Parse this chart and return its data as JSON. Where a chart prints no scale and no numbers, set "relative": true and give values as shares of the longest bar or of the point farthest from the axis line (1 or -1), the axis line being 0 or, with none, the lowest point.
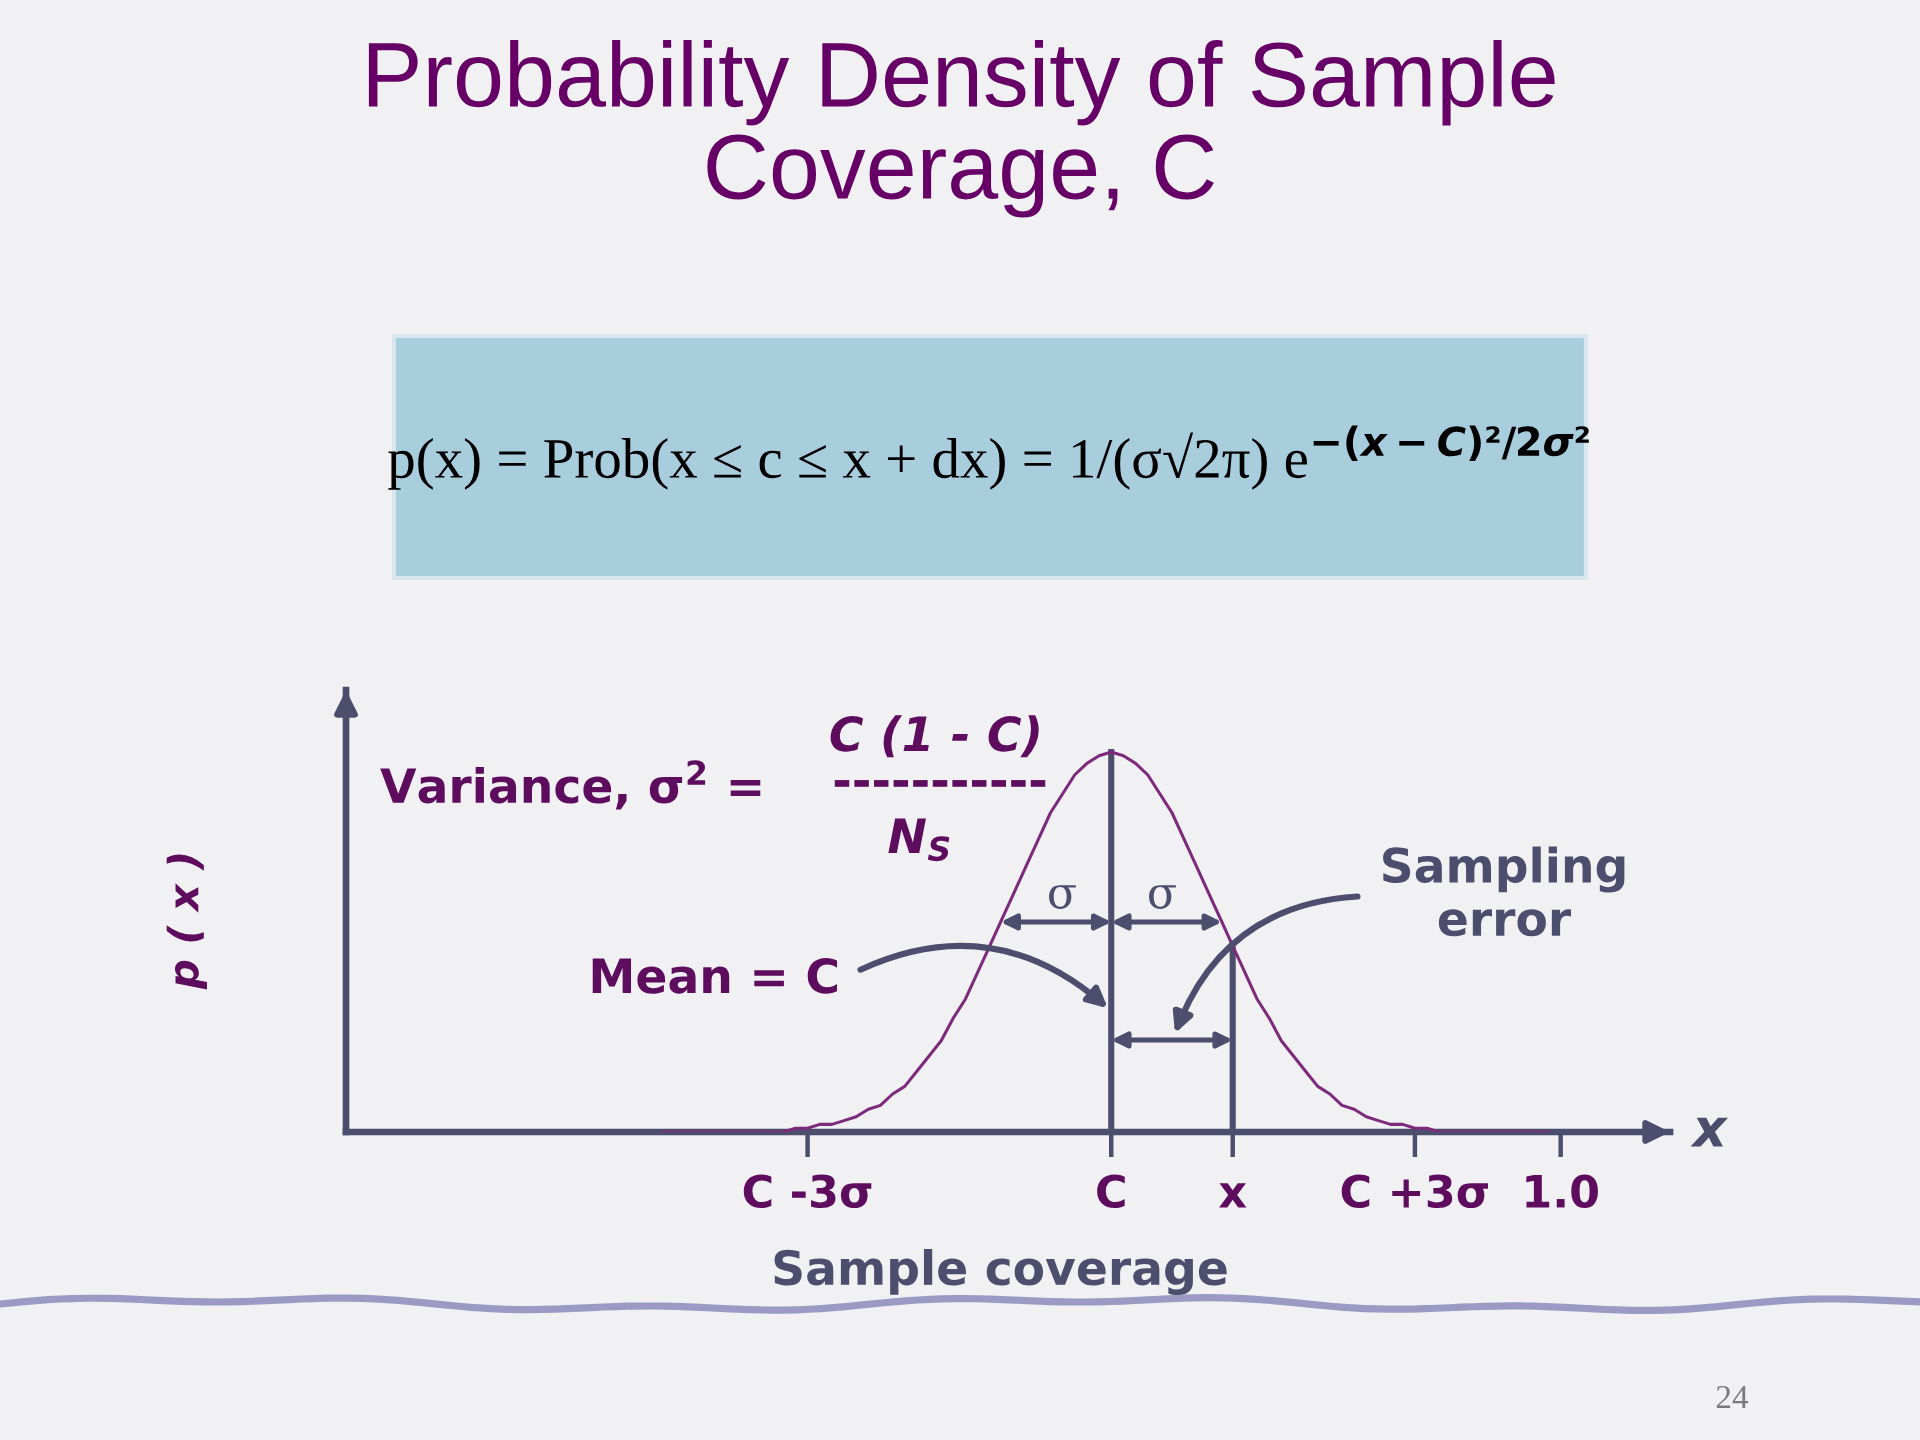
{
  "chart_data": {
    "type": "line",
    "title": "Probability Density of Sample\nCoverage, C",
    "xlabel": "x",
    "ylabel": "p ( x )",
    "relative": true,
    "categories": [
      null,
      null,
      null,
      null,
      null,
      null,
      null,
      null,
      null,
      null,
      null,
      null,
      null,
      null,
      null,
      null,
      null,
      null,
      null,
      null,
      null,
      null,
      null,
      null,
      null,
      null,
      null,
      null,
      null,
      null,
      null,
      null,
      null,
      null,
      null,
      null,
      null,
      null,
      "C -3σ",
      null,
      null,
      null,
      null,
      null,
      null,
      null,
      null,
      null,
      null,
      null,
      null,
      null,
      null,
      null,
      null,
      null,
      null,
      null,
      null,
      null,
      null,
      null,
      null,
      "C",
      null,
      null,
      null,
      null,
      null,
      null,
      null,
      null,
      null,
      "x",
      null,
      null,
      null,
      null,
      null,
      null,
      null,
      null,
      null,
      null,
      null,
      null,
      null,
      null,
      "C +3σ",
      null,
      null,
      null,
      null,
      null,
      null,
      null,
      null,
      null,
      null,
      null,
      "1.0",
      null,
      null,
      null,
      null,
      null,
      null,
      null,
      null,
      null
    ],
    "values": [
      null,
      null,
      null,
      null,
      null,
      null,
      null,
      null,
      null,
      null,
      null,
      null,
      null,
      null,
      null,
      null,
      null,
      null,
      null,
      null,
      null,
      null,
      null,
      null,
      null,
      null,
      0,
      0,
      0,
      0,
      0,
      0,
      0,
      0,
      0,
      0,
      0,
      0.01,
      0.01,
      0.02,
      0.02,
      0.03,
      0.04,
      0.06,
      0.07,
      0.1,
      0.12,
      0.16,
      0.2,
      0.24,
      0.3,
      0.35,
      0.42,
      0.49,
      0.56,
      0.63,
      0.7,
      0.77,
      0.84,
      0.89,
      0.94,
      0.97,
      0.99,
      1.0,
      0.99,
      0.97,
      0.94,
      0.89,
      0.84,
      0.77,
      0.7,
      0.63,
      0.56,
      0.49,
      0.42,
      0.35,
      0.3,
      0.24,
      0.2,
      0.16,
      0.12,
      0.1,
      0.07,
      0.06,
      0.04,
      0.03,
      0.02,
      0.02,
      0.01,
      0.01,
      0,
      0,
      0,
      0,
      0,
      0,
      0,
      0,
      0,
      0,
      null,
      null,
      null,
      null,
      null,
      null,
      null,
      null,
      null,
      null
    ],
    "color": "#7d2a7d",
    "ref_lines": [
      {
        "axis": "x",
        "value": "C"
      },
      {
        "axis": "x",
        "value": "x"
      }
    ],
    "annotations": [
      "p(x) = Prob(x ≤ c ≤ x + dx) = 1/(σ√2π) e$^{−(x−C)²/2σ²}$",
      "Variance, σ$^{2}$ =",
      "C (1 - C)",
      "-----------",
      "N$_{S}$",
      "Mean = C",
      "Sampling\nerror",
      "σ",
      "σ",
      "Sample coverage",
      "24"
    ]
  }
}
